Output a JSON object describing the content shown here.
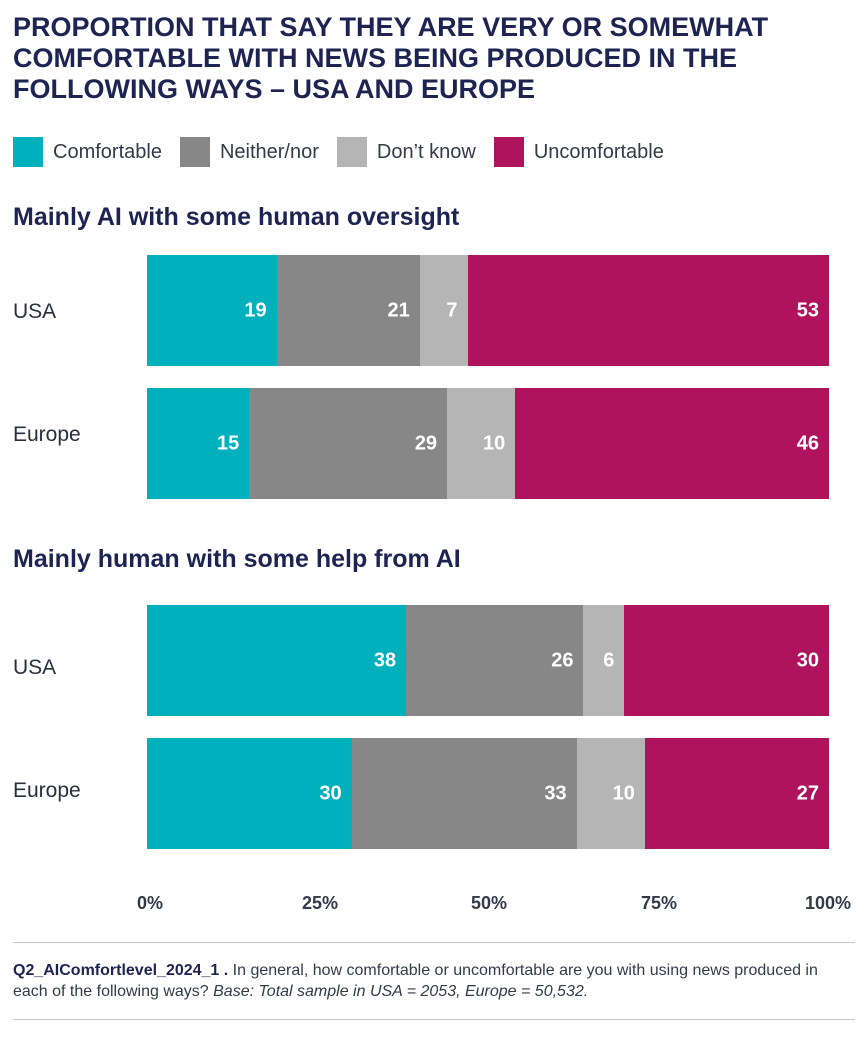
{
  "colors": {
    "comfortable": "#00b0bd",
    "neither": "#878787",
    "dont_know": "#b5b5b5",
    "uncomfortable": "#b0135d"
  },
  "chart_data": {
    "type": "bar",
    "orientation": "horizontal",
    "stacked": true,
    "title": "PROPORTION THAT SAY THEY ARE VERY OR SOMEWHAT COMFORTABLE WITH NEWS BEING PRODUCED IN THE FOLLOWING WAYS – USA AND EUROPE",
    "legend": [
      "Comfortable",
      "Neither/nor",
      "Don’t know",
      "Uncomfortable"
    ],
    "legend_placement": "top-left",
    "xlim": [
      0,
      100
    ],
    "x_ticks": [
      "0%",
      "25%",
      "50%",
      "75%",
      "100%"
    ],
    "grid": false,
    "groups": [
      {
        "title": "Mainly AI with some human oversight",
        "rows": [
          {
            "label": "USA",
            "values": [
              19,
              21,
              7,
              53
            ]
          },
          {
            "label": "Europe",
            "values": [
              15,
              29,
              10,
              46
            ]
          }
        ]
      },
      {
        "title": "Mainly human with some help from AI",
        "rows": [
          {
            "label": "USA",
            "values": [
              38,
              26,
              6,
              30
            ]
          },
          {
            "label": "Europe",
            "values": [
              30,
              33,
              10,
              27
            ]
          }
        ]
      }
    ]
  },
  "note": {
    "code": "Q2_AIComfortlevel_2024_1 .",
    "question": " In general, how comfortable or uncomfortable are you with using news produced in each of the following ways? ",
    "base": "Base: Total sample in USA = 2053, Europe = 50,532."
  }
}
